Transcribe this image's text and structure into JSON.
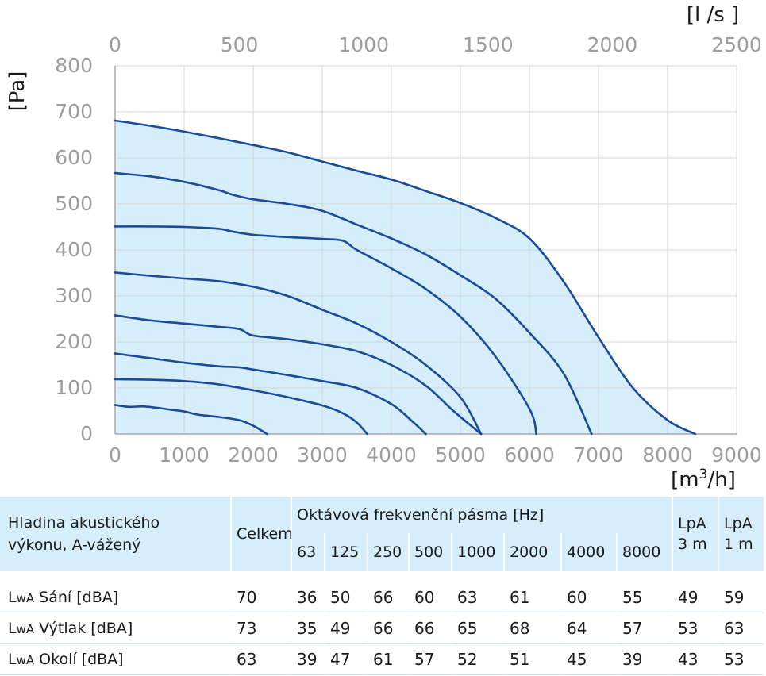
{
  "chart_data": {
    "type": "line",
    "x_axis_bottom": {
      "label": "[m³/h]",
      "ticks": [
        "0",
        "1000",
        "2000",
        "3000",
        "4000",
        "5000",
        "6000",
        "7000",
        "8000",
        "9000"
      ],
      "range": [
        0,
        9000
      ]
    },
    "x_axis_top": {
      "label": "[l /s ]",
      "ticks": [
        "0",
        "500",
        "1000",
        "1500",
        "2000",
        "2500"
      ],
      "range": [
        0,
        2500
      ]
    },
    "y_axis": {
      "label": "[Pa]",
      "ticks": [
        "0",
        "100",
        "200",
        "300",
        "400",
        "500",
        "600",
        "700",
        "800"
      ],
      "range": [
        0,
        800
      ]
    },
    "grid": true,
    "fill_color": "#d6eefb",
    "line_color": "#1a4a9a",
    "series": [
      {
        "x": [
          0,
          500,
          1000,
          1500,
          2000,
          2500,
          3000,
          3500,
          4000,
          4500,
          5000,
          5500,
          6000,
          6500,
          7000,
          7500,
          8000,
          8400
        ],
        "y": [
          681,
          670,
          657,
          643,
          628,
          612,
          592,
          572,
          553,
          528,
          502,
          470,
          425,
          330,
          210,
          100,
          30,
          0
        ]
      },
      {
        "x": [
          0,
          500,
          1000,
          1500,
          1700,
          2000,
          2500,
          3000,
          3500,
          4000,
          4500,
          5000,
          5500,
          6000,
          6500,
          6900
        ],
        "y": [
          567,
          560,
          548,
          530,
          520,
          510,
          500,
          485,
          455,
          425,
          390,
          345,
          295,
          220,
          130,
          0
        ]
      },
      {
        "x": [
          0,
          500,
          1000,
          1500,
          1700,
          2000,
          2500,
          3000,
          3300,
          3500,
          4000,
          4500,
          5000,
          5500,
          6000,
          6100
        ],
        "y": [
          451,
          451,
          450,
          446,
          440,
          433,
          428,
          424,
          420,
          400,
          360,
          315,
          255,
          170,
          55,
          0
        ]
      },
      {
        "x": [
          0,
          500,
          1000,
          1500,
          2000,
          2500,
          3000,
          3500,
          4000,
          4500,
          5000,
          5300
        ],
        "y": [
          351,
          344,
          338,
          332,
          320,
          300,
          270,
          240,
          200,
          150,
          80,
          0
        ]
      },
      {
        "x": [
          0,
          500,
          1000,
          1500,
          1800,
          2000,
          2500,
          3000,
          3500,
          4000,
          4500,
          4900,
          5300
        ],
        "y": [
          258,
          247,
          240,
          233,
          228,
          214,
          206,
          195,
          180,
          150,
          105,
          50,
          0
        ]
      },
      {
        "x": [
          0,
          500,
          1000,
          1500,
          1800,
          2000,
          2500,
          3000,
          3500,
          4000,
          4300,
          4500
        ],
        "y": [
          175,
          165,
          155,
          147,
          145,
          140,
          128,
          115,
          100,
          65,
          28,
          0
        ]
      },
      {
        "x": [
          0,
          500,
          1000,
          1500,
          2000,
          2500,
          3000,
          3300,
          3500,
          3650
        ],
        "y": [
          119,
          118,
          115,
          108,
          95,
          80,
          62,
          45,
          25,
          0
        ]
      },
      {
        "x": [
          0,
          200,
          400,
          600,
          800,
          1000,
          1200,
          1500,
          1800,
          2000,
          2200
        ],
        "y": [
          63,
          59,
          60,
          57,
          53,
          49,
          42,
          37,
          30,
          18,
          0
        ]
      }
    ]
  },
  "table": {
    "header": {
      "label_line1": "Hladina akustického",
      "label_line2": "výkonu, A-vážený",
      "total": "Celkem",
      "band_title": "Oktávová frekvenční pásma [Hz]",
      "bands": [
        "63",
        "125",
        "250",
        "500",
        "1000",
        "2000",
        "4000",
        "8000"
      ],
      "lpa3_line1": "LpA",
      "lpa3_line2": "3 m",
      "lpa1_line1": "LpA",
      "lpa1_line2": "1 m"
    },
    "rows": [
      {
        "prefix": "L",
        "sub": "wA",
        "label": "Sání [dBA]",
        "total": "70",
        "bands": [
          "36",
          "50",
          "66",
          "60",
          "63",
          "61",
          "60",
          "55"
        ],
        "lpa3": "49",
        "lpa1": "59"
      },
      {
        "prefix": "L",
        "sub": "wA",
        "label": "Výtlak [dBA]",
        "total": "73",
        "bands": [
          "35",
          "49",
          "66",
          "66",
          "65",
          "68",
          "64",
          "57"
        ],
        "lpa3": "53",
        "lpa1": "63"
      },
      {
        "prefix": "L",
        "sub": "wA",
        "label": "Okolí [dBA]",
        "total": "63",
        "bands": [
          "39",
          "47",
          "61",
          "57",
          "52",
          "51",
          "45",
          "39"
        ],
        "lpa3": "43",
        "lpa1": "53"
      }
    ]
  }
}
